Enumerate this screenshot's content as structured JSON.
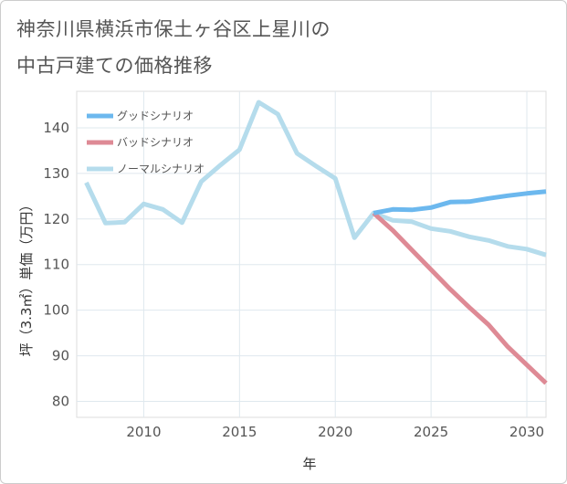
{
  "title": [
    "神奈川県横浜市保土ヶ谷区上星川の",
    "中古戸建ての価格推移"
  ],
  "chart_data": {
    "type": "line",
    "title": "神奈川県横浜市保土ヶ谷区上星川の中古戸建ての価格推移",
    "xlabel": "年",
    "ylabel": "坪（3.3㎡）単価（万円）",
    "xlim": [
      2006.5,
      2031
    ],
    "ylim": [
      76.5,
      148
    ],
    "xticks": [
      2010,
      2015,
      2020,
      2025,
      2030
    ],
    "yticks": [
      80,
      90,
      100,
      110,
      120,
      130,
      140
    ],
    "grid": true,
    "legend_position": "top-left",
    "series": [
      {
        "name": "グッドシナリオ",
        "color": "#6cb8ee",
        "x": [
          2022,
          2023,
          2024,
          2025,
          2026,
          2027,
          2028,
          2029,
          2030,
          2031
        ],
        "y": [
          121.3,
          122.1,
          122.0,
          122.5,
          123.7,
          123.8,
          124.5,
          125.1,
          125.6,
          126.0
        ]
      },
      {
        "name": "バッドシナリオ",
        "color": "#de8a95",
        "x": [
          2022,
          2023,
          2024,
          2025,
          2026,
          2027,
          2028,
          2029,
          2030,
          2031
        ],
        "y": [
          121.3,
          117.5,
          113.2,
          108.9,
          104.6,
          100.6,
          96.8,
          92.0,
          88.0,
          84.0
        ]
      },
      {
        "name": "ノーマルシナリオ",
        "color": "#b5dcec",
        "x": [
          2007,
          2008,
          2009,
          2010,
          2011,
          2012,
          2013,
          2014,
          2015,
          2016,
          2017,
          2018,
          2019,
          2020,
          2021,
          2022,
          2023,
          2024,
          2025,
          2026,
          2027,
          2028,
          2029,
          2030,
          2031
        ],
        "y": [
          128.0,
          119.1,
          119.3,
          123.3,
          122.1,
          119.2,
          128.2,
          131.8,
          135.2,
          145.6,
          143.0,
          134.4,
          131.6,
          128.9,
          115.9,
          121.3,
          119.7,
          119.4,
          117.9,
          117.3,
          116.1,
          115.3,
          114.0,
          113.4,
          112.1
        ]
      }
    ]
  }
}
